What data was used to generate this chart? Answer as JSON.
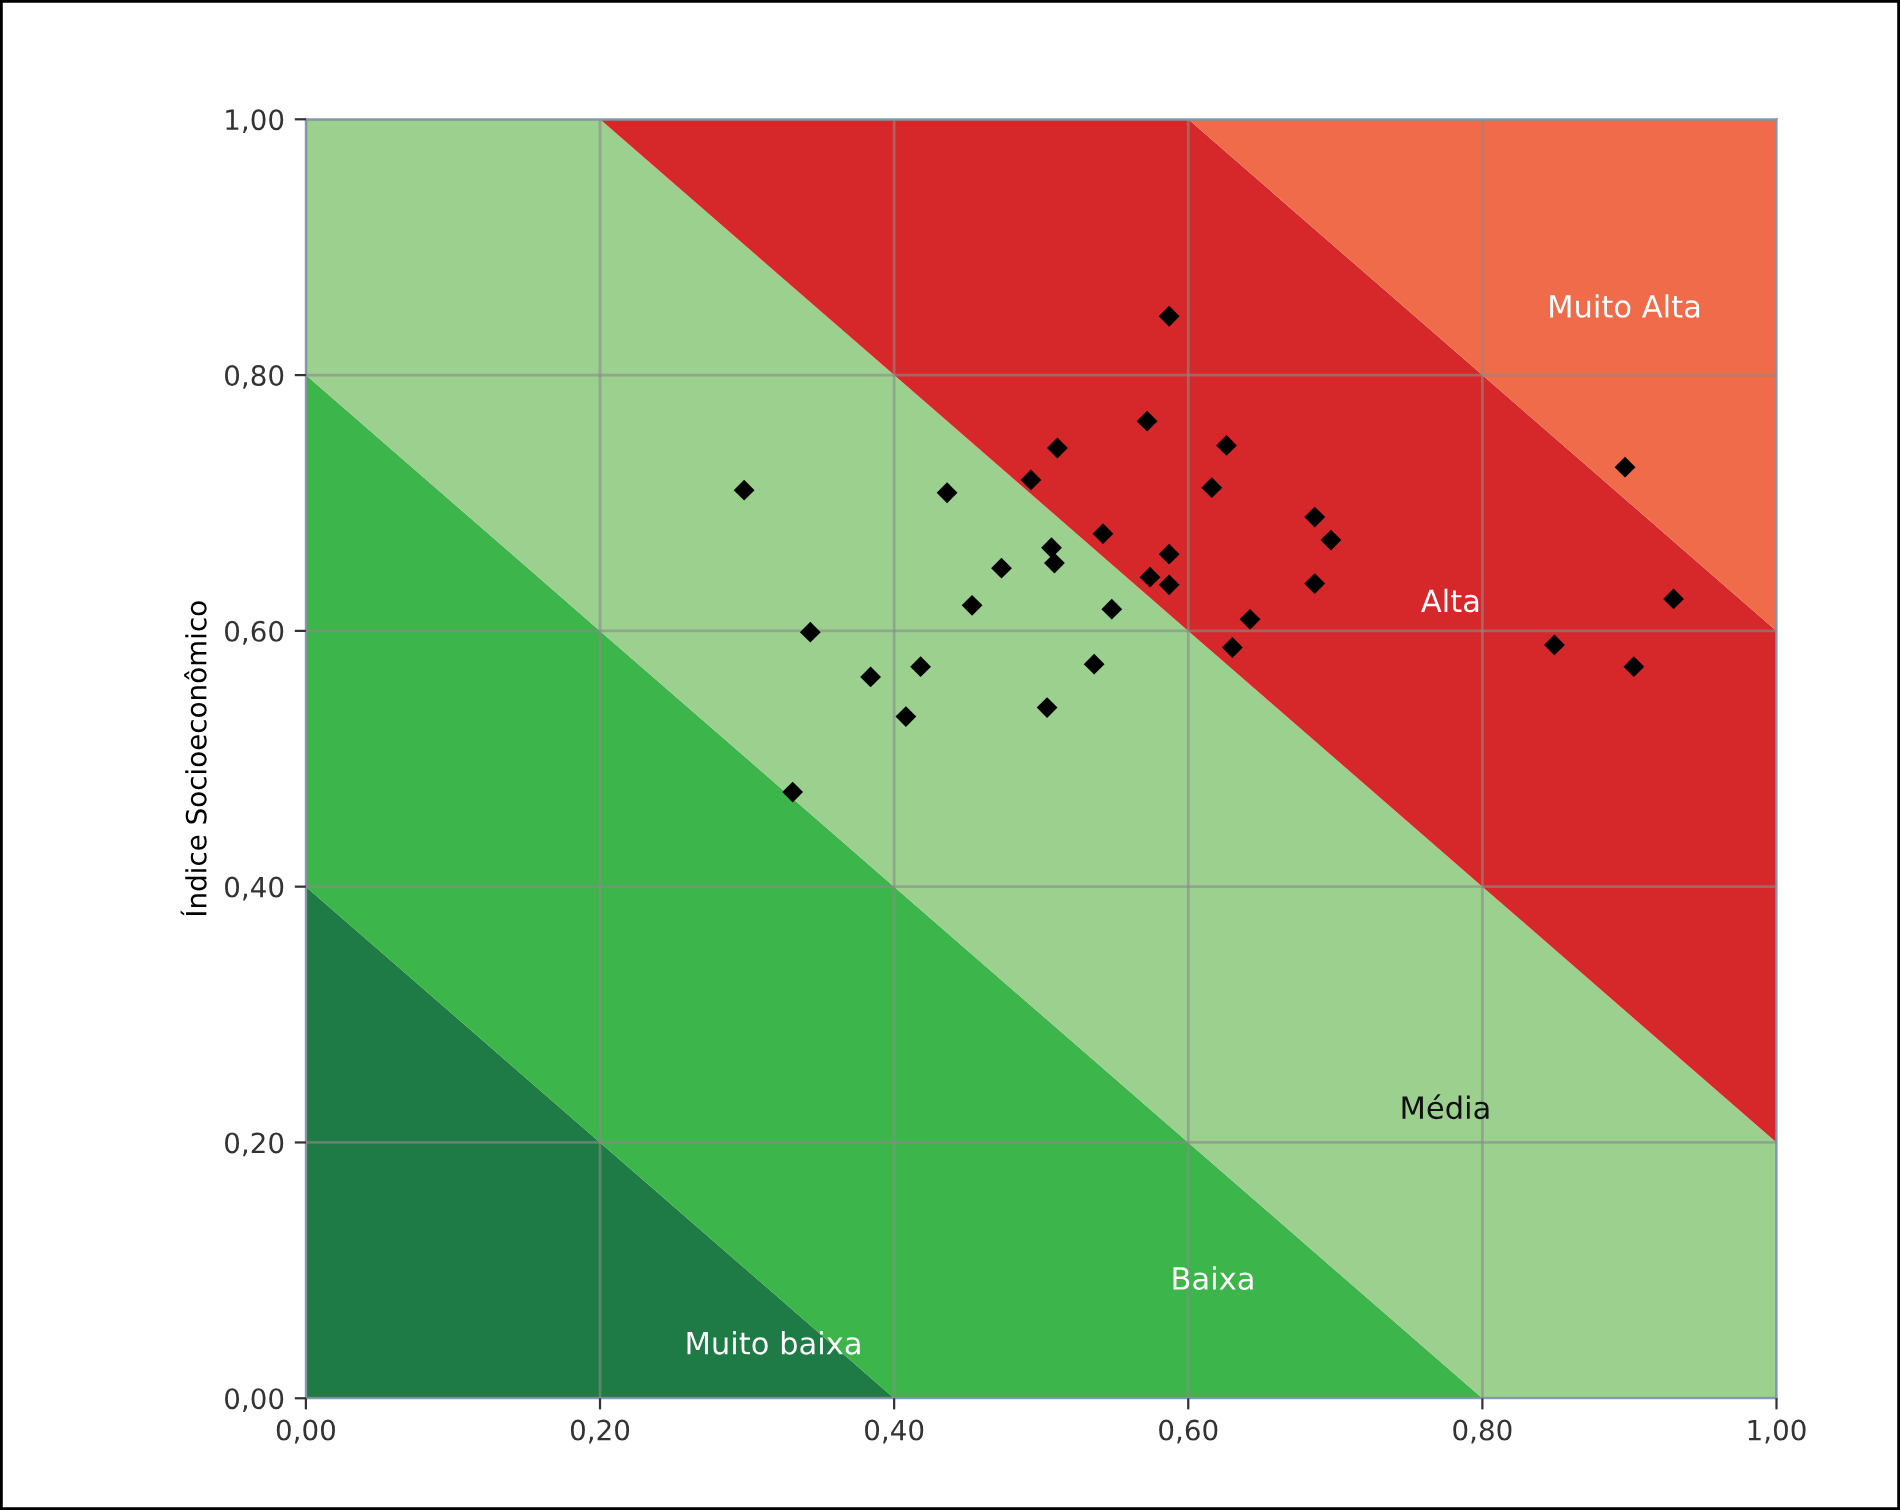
{
  "chart_data": {
    "type": "scatter",
    "ylabel": "Índice Socioeconômico",
    "xlim": [
      0,
      1
    ],
    "ylim": [
      0,
      1
    ],
    "xticks": [
      {
        "value": 0,
        "label": "0,00"
      },
      {
        "value": 0.2,
        "label": "0,20"
      },
      {
        "value": 0.4,
        "label": "0,40"
      },
      {
        "value": 0.6,
        "label": "0,60"
      },
      {
        "value": 0.8,
        "label": "0,80"
      },
      {
        "value": 1,
        "label": "1,00"
      }
    ],
    "yticks": [
      {
        "value": 0,
        "label": "0,00"
      },
      {
        "value": 0.2,
        "label": "0,20"
      },
      {
        "value": 0.4,
        "label": "0,40"
      },
      {
        "value": 0.6,
        "label": "0,60"
      },
      {
        "value": 0.8,
        "label": "0,80"
      },
      {
        "value": 1,
        "label": "1,00"
      }
    ],
    "grid": true,
    "stacked": true,
    "series": [
      {
        "type": "area",
        "name": "Muito baixa",
        "color": "#1e7b45",
        "x": [
          0,
          0.2,
          0.4,
          0.6,
          0.8,
          1
        ],
        "values": [
          0.4,
          0.2,
          0,
          0,
          0,
          0
        ]
      },
      {
        "type": "area",
        "name": "Baixa",
        "color": "#3cb54a",
        "x": [
          0,
          0.2,
          0.4,
          0.6,
          0.8,
          1
        ],
        "values": [
          0.4,
          0.4,
          0.4,
          0.2,
          0,
          0
        ]
      },
      {
        "type": "area",
        "name": "Média",
        "color": "#9bd08f",
        "x": [
          0,
          0.2,
          0.4,
          0.6,
          0.8,
          1
        ],
        "values": [
          0.2,
          0.4,
          0.4,
          0.4,
          0.4,
          0.2
        ]
      },
      {
        "type": "area",
        "name": "Alta",
        "color": "#d6282a",
        "x": [
          0,
          0.2,
          0.4,
          0.6,
          0.8,
          1
        ],
        "values": [
          0,
          0,
          0.2,
          0.4,
          0.4,
          0.4
        ]
      },
      {
        "type": "area",
        "name": "Muito Alta",
        "color": "#f06b4a",
        "x": [
          0,
          0.2,
          0.4,
          0.6,
          0.8,
          1
        ],
        "values": [
          0,
          0,
          0,
          0,
          0.2,
          0.4
        ]
      },
      {
        "color": "#000000",
        "marker": "diamond",
        "x": [
          0.587,
          0.572,
          0.511,
          0.626,
          0.493,
          0.298,
          0.436,
          0.616,
          0.542,
          0.507,
          0.509,
          0.473,
          0.587,
          0.574,
          0.587,
          0.453,
          0.548,
          0.642,
          0.343,
          0.63,
          0.536,
          0.418,
          0.384,
          0.408,
          0.504,
          0.331,
          0.686,
          0.697,
          0.686,
          0.897,
          0.93,
          0.849,
          0.903
        ],
        "values": [
          0.846,
          0.764,
          0.743,
          0.745,
          0.718,
          0.71,
          0.708,
          0.712,
          0.676,
          0.665,
          0.653,
          0.649,
          0.66,
          0.642,
          0.636,
          0.62,
          0.617,
          0.609,
          0.599,
          0.587,
          0.574,
          0.572,
          0.564,
          0.533,
          0.54,
          0.474,
          0.689,
          0.671,
          0.637,
          0.728,
          0.625,
          0.589,
          0.572
        ]
      }
    ]
  }
}
